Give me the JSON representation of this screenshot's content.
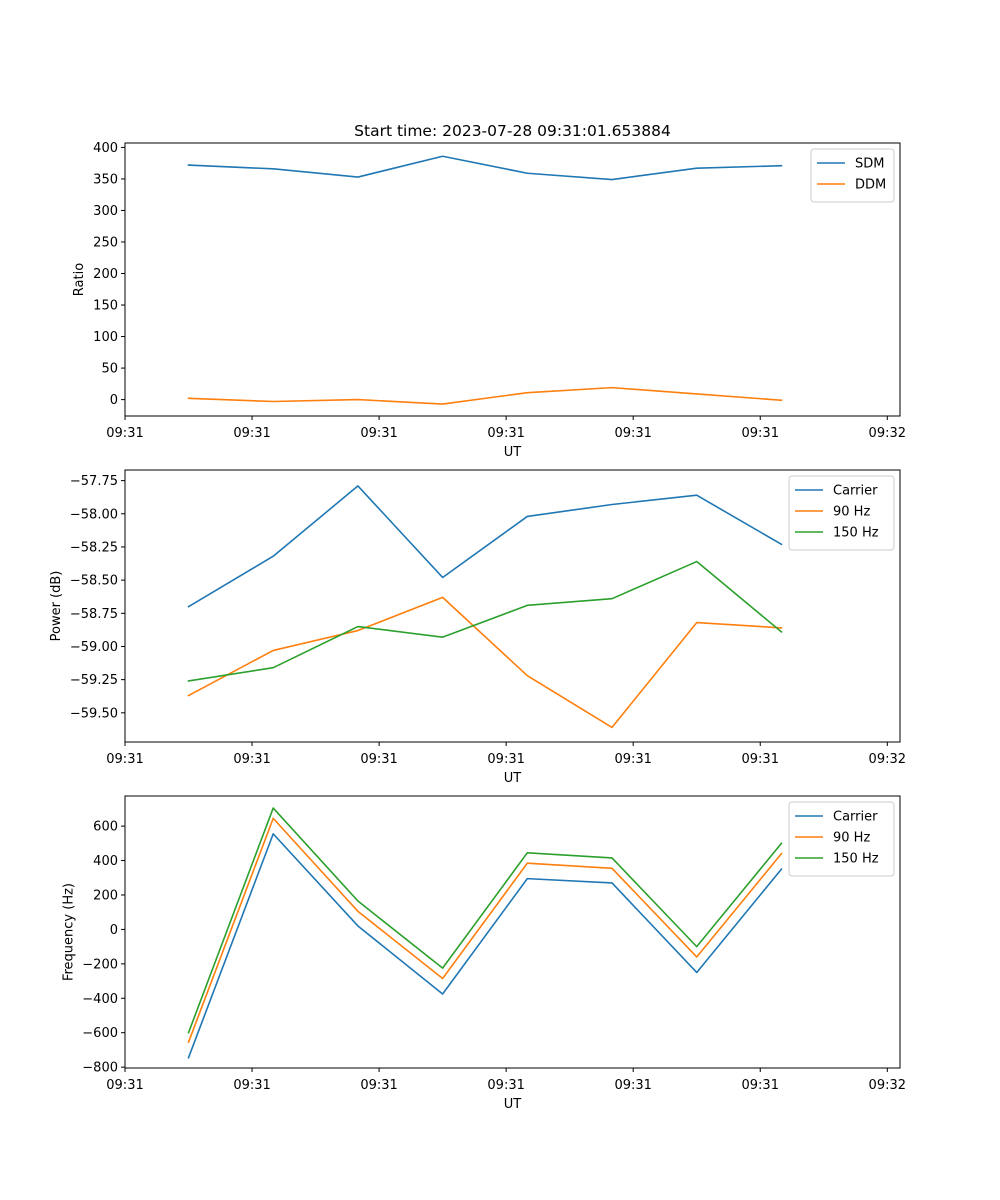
{
  "chart_data": [
    {
      "type": "line",
      "title": "Start time: 2023-07-28 09:31:01.653884",
      "xlabel": "UT",
      "ylabel": "Ratio",
      "xlim": [
        -0.75,
        8.4
      ],
      "ylim": [
        -26,
        407
      ],
      "xticks": [
        -0.75,
        0.75,
        2.25,
        3.75,
        5.25,
        6.75,
        8.25
      ],
      "xtick_labels": [
        "09:31",
        "09:31",
        "09:31",
        "09:31",
        "09:31",
        "09:31",
        "09:32"
      ],
      "yticks": [
        0,
        50,
        100,
        150,
        200,
        250,
        300,
        350,
        400
      ],
      "ytick_labels": [
        "0",
        "50",
        "100",
        "150",
        "200",
        "250",
        "300",
        "350",
        "400"
      ],
      "x": [
        0,
        1,
        2,
        3,
        4,
        5,
        6,
        7
      ],
      "legend_position": "top-right",
      "series": [
        {
          "name": "SDM",
          "color": "#1f77b4",
          "values": [
            372,
            366,
            353,
            386,
            359,
            349,
            367,
            371
          ]
        },
        {
          "name": "DDM",
          "color": "#ff7f0e",
          "values": [
            2,
            -3,
            0,
            -7,
            11,
            19,
            9,
            -1
          ]
        }
      ]
    },
    {
      "type": "line",
      "title": "",
      "xlabel": "UT",
      "ylabel": "Power (dB)",
      "xlim": [
        -0.75,
        8.4
      ],
      "ylim": [
        -59.72,
        -57.67
      ],
      "xticks": [
        -0.75,
        0.75,
        2.25,
        3.75,
        5.25,
        6.75,
        8.25
      ],
      "xtick_labels": [
        "09:31",
        "09:31",
        "09:31",
        "09:31",
        "09:31",
        "09:31",
        "09:32"
      ],
      "yticks": [
        -59.5,
        -59.25,
        -59.0,
        -58.75,
        -58.5,
        -58.25,
        -58.0,
        -57.75
      ],
      "ytick_labels": [
        "−59.50",
        "−59.25",
        "−59.00",
        "−58.75",
        "−58.50",
        "−58.25",
        "−58.00",
        "−57.75"
      ],
      "x": [
        0,
        1,
        2,
        3,
        4,
        5,
        6,
        7
      ],
      "legend_position": "top-right",
      "series": [
        {
          "name": "Carrier",
          "color": "#1f77b4",
          "values": [
            -58.7,
            -58.32,
            -57.79,
            -58.48,
            -58.02,
            -57.93,
            -57.86,
            -58.23
          ]
        },
        {
          "name": "90 Hz",
          "color": "#ff7f0e",
          "values": [
            -59.37,
            -59.03,
            -58.88,
            -58.63,
            -59.22,
            -59.61,
            -58.82,
            -58.86
          ]
        },
        {
          "name": "150 Hz",
          "color": "#2ca02c",
          "values": [
            -59.26,
            -59.16,
            -58.85,
            -58.93,
            -58.69,
            -58.64,
            -58.36,
            -58.89
          ]
        }
      ]
    },
    {
      "type": "line",
      "title": "",
      "xlabel": "UT",
      "ylabel": "Frequency (Hz)",
      "xlim": [
        -0.75,
        8.4
      ],
      "ylim": [
        -805,
        775
      ],
      "xticks": [
        -0.75,
        0.75,
        2.25,
        3.75,
        5.25,
        6.75,
        8.25
      ],
      "xtick_labels": [
        "09:31",
        "09:31",
        "09:31",
        "09:31",
        "09:31",
        "09:31",
        "09:32"
      ],
      "yticks": [
        -800,
        -600,
        -400,
        -200,
        0,
        200,
        400,
        600
      ],
      "ytick_labels": [
        "−800",
        "−600",
        "−400",
        "−200",
        "0",
        "200",
        "400",
        "600"
      ],
      "x": [
        0,
        1,
        2,
        3,
        4,
        5,
        6,
        7
      ],
      "legend_position": "top-right",
      "series": [
        {
          "name": "Carrier",
          "color": "#1f77b4",
          "values": [
            -745,
            555,
            20,
            -375,
            295,
            270,
            -250,
            350
          ]
        },
        {
          "name": "90 Hz",
          "color": "#ff7f0e",
          "values": [
            -655,
            645,
            105,
            -285,
            385,
            355,
            -160,
            440
          ]
        },
        {
          "name": "150 Hz",
          "color": "#2ca02c",
          "values": [
            -600,
            705,
            165,
            -225,
            445,
            415,
            -100,
            500
          ]
        }
      ]
    }
  ]
}
